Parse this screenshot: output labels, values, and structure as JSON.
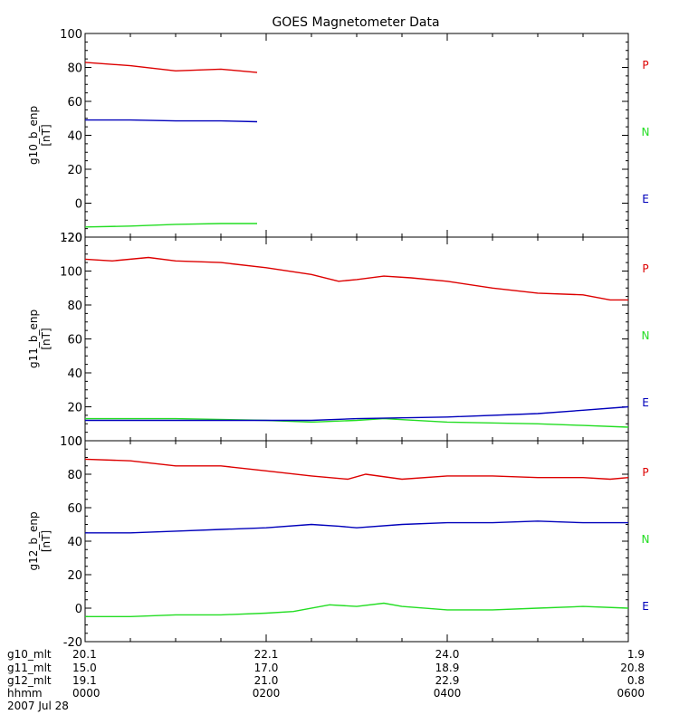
{
  "title": "GOES Magnetometer Data",
  "chart_data": [
    {
      "type": "line",
      "ylabel": "g10_b_enp",
      "yunit": "[nT]",
      "ylim": [
        -20,
        100
      ],
      "yticks": [
        -20,
        0,
        20,
        40,
        60,
        80,
        100
      ],
      "xlim": [
        0,
        6
      ],
      "series": [
        {
          "name": "P",
          "color": "#dd0000",
          "x": [
            0,
            0.5,
            1.0,
            1.5,
            1.9
          ],
          "values": [
            83,
            81,
            78,
            79,
            77
          ]
        },
        {
          "name": "N",
          "color": "#22dd22",
          "x": [
            0,
            0.5,
            1.0,
            1.5,
            1.9
          ],
          "values": [
            -14,
            -13.5,
            -12.5,
            -12,
            -12
          ]
        },
        {
          "name": "E",
          "color": "#0000bb",
          "x": [
            0,
            0.5,
            1.0,
            1.5,
            1.9
          ],
          "values": [
            49,
            49,
            48.5,
            48.5,
            48
          ]
        }
      ]
    },
    {
      "type": "line",
      "ylabel": "g11_b_enp",
      "yunit": "[nT]",
      "ylim": [
        0,
        120
      ],
      "yticks": [
        0,
        20,
        40,
        60,
        80,
        100,
        120
      ],
      "xlim": [
        0,
        6
      ],
      "series": [
        {
          "name": "P",
          "color": "#dd0000",
          "x": [
            0,
            0.3,
            0.7,
            1.0,
            1.5,
            2.0,
            2.5,
            2.8,
            3.0,
            3.3,
            3.6,
            4.0,
            4.5,
            5.0,
            5.5,
            5.8,
            6.0
          ],
          "values": [
            107,
            106,
            108,
            106,
            105,
            102,
            98,
            94,
            95,
            97,
            96,
            94,
            90,
            87,
            86,
            83,
            83
          ]
        },
        {
          "name": "N",
          "color": "#22dd22",
          "x": [
            0,
            1.0,
            2.0,
            2.5,
            3.0,
            3.3,
            4.0,
            5.0,
            5.5,
            6.0
          ],
          "values": [
            13,
            13,
            12,
            11,
            12,
            13,
            11,
            10,
            9,
            8
          ]
        },
        {
          "name": "E",
          "color": "#0000bb",
          "x": [
            0,
            1.0,
            2.0,
            2.5,
            3.0,
            4.0,
            5.0,
            5.5,
            6.0
          ],
          "values": [
            12,
            12,
            12,
            12,
            13,
            14,
            16,
            18,
            20
          ]
        }
      ]
    },
    {
      "type": "line",
      "ylabel": "g12_b_enp",
      "yunit": "[nT]",
      "ylim": [
        -20,
        100
      ],
      "yticks": [
        -20,
        0,
        20,
        40,
        60,
        80,
        100
      ],
      "xlim": [
        0,
        6
      ],
      "series": [
        {
          "name": "P",
          "color": "#dd0000",
          "x": [
            0,
            0.5,
            1.0,
            1.5,
            2.0,
            2.5,
            2.9,
            3.1,
            3.5,
            4.0,
            4.5,
            5.0,
            5.5,
            5.8,
            6.0
          ],
          "values": [
            89,
            88,
            85,
            85,
            82,
            79,
            77,
            80,
            77,
            79,
            79,
            78,
            78,
            77,
            78
          ]
        },
        {
          "name": "N",
          "color": "#22dd22",
          "x": [
            0,
            0.5,
            1.0,
            1.5,
            2.0,
            2.3,
            2.7,
            3.0,
            3.3,
            3.5,
            4.0,
            4.5,
            5.0,
            5.5,
            6.0
          ],
          "values": [
            -5,
            -5,
            -4,
            -4,
            -3,
            -2,
            2,
            1,
            3,
            1,
            -1,
            -1,
            0,
            1,
            0
          ]
        },
        {
          "name": "E",
          "color": "#0000bb",
          "x": [
            0,
            0.5,
            1.0,
            1.5,
            2.0,
            2.5,
            2.8,
            3.0,
            3.5,
            4.0,
            4.5,
            5.0,
            5.5,
            6.0
          ],
          "values": [
            45,
            45,
            46,
            47,
            48,
            50,
            49,
            48,
            50,
            51,
            51,
            52,
            51,
            51
          ]
        }
      ]
    }
  ],
  "x_axis": {
    "rows": [
      {
        "name": "g10_mlt",
        "values": [
          "20.1",
          "22.1",
          "24.0",
          "1.9"
        ]
      },
      {
        "name": "g11_mlt",
        "values": [
          "15.0",
          "17.0",
          "18.9",
          "20.8"
        ]
      },
      {
        "name": "g12_mlt",
        "values": [
          "19.1",
          "21.0",
          "22.9",
          "0.8"
        ]
      },
      {
        "name": "hhmm",
        "values": [
          "0000",
          "0200",
          "0400",
          "0600"
        ]
      }
    ],
    "date": "2007 Jul 28",
    "tick_hours": [
      0,
      2,
      4,
      6
    ]
  }
}
